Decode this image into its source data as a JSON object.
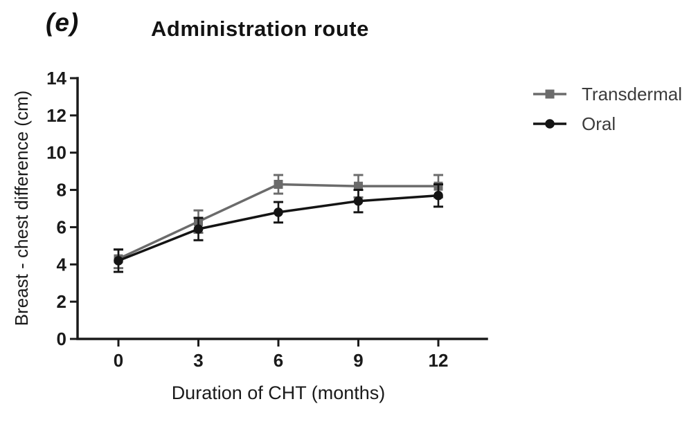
{
  "panel_label": "(e)",
  "title": "Administration route",
  "legend": {
    "position": "right",
    "items": [
      {
        "label": "Transdermal",
        "marker": "square",
        "color": "#6b6b6b"
      },
      {
        "label": "Oral",
        "marker": "circle",
        "color": "#141414"
      }
    ]
  },
  "chart_data": {
    "type": "line",
    "title": "Administration route",
    "xlabel": "Duration of CHT (months)",
    "ylabel": "Breast - chest difference (cm)",
    "x": [
      0,
      3,
      6,
      9,
      12
    ],
    "xticks": [
      0,
      3,
      6,
      9,
      12
    ],
    "yticks": [
      0,
      2,
      4,
      6,
      8,
      10,
      12,
      14
    ],
    "xlim": [
      0,
      12
    ],
    "ylim": [
      0,
      14
    ],
    "grid": false,
    "error_bars": true,
    "legend_position": "right",
    "series": [
      {
        "name": "Transdermal",
        "marker": "square",
        "color": "#6b6b6b",
        "values": [
          4.3,
          6.3,
          8.3,
          8.2,
          8.2
        ],
        "errors": [
          0.5,
          0.6,
          0.5,
          0.6,
          0.6
        ]
      },
      {
        "name": "Oral",
        "marker": "circle",
        "color": "#141414",
        "values": [
          4.2,
          5.9,
          6.8,
          7.4,
          7.7
        ],
        "errors": [
          0.6,
          0.6,
          0.55,
          0.6,
          0.6
        ]
      }
    ],
    "axis_color": "#1a1a1a",
    "tick_label_color": "#1a1a1a",
    "legend_text_color": "#3c3c3c"
  }
}
